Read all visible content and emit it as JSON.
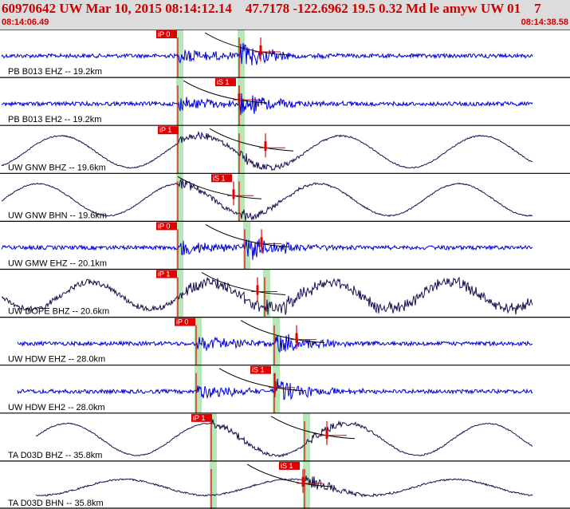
{
  "header": {
    "title": "60970642 UW Mar 10, 2015 08:14:12.14    47.7178 -122.6962 19.5 0.32 Md le amyw UW 01    7",
    "time_start": "08:14:06.49",
    "time_end": "08:14:38.58"
  },
  "colors": {
    "header_bg": "#dcdcdc",
    "header_text": "#cc0000",
    "trace_blue": "#0000d8",
    "trace_navy": "#1a1050",
    "pick_red": "#e00000",
    "band_green": "#b8e6b8"
  },
  "channels": [
    {
      "label": "PB B013 EHZ -- 19.2km",
      "pick": "iP 0",
      "trace": "blue",
      "kind": "hf"
    },
    {
      "label": "PB B013 EH2 -- 19.2km",
      "pick": "iS 1",
      "trace": "blue",
      "kind": "hf"
    },
    {
      "label": "UW GNW BHZ -- 19.6km",
      "pick": "iP 1",
      "trace": "navy",
      "kind": "lf"
    },
    {
      "label": "UW GNW BHN -- 19.6km",
      "pick": "iS 1",
      "trace": "navy",
      "kind": "lf"
    },
    {
      "label": "UW GMW EHZ -- 20.1km",
      "pick": "iP 0",
      "trace": "blue",
      "kind": "hf"
    },
    {
      "label": "UW DOPE BHZ -- 20.6km",
      "pick": "iP 1",
      "trace": "navy",
      "kind": "mix"
    },
    {
      "label": "UW HDW EHZ -- 28.0km",
      "pick": "iP 0",
      "trace": "blue",
      "kind": "hf"
    },
    {
      "label": "UW HDW EH2 -- 28.0km",
      "pick": "iS 1",
      "trace": "blue",
      "kind": "hf"
    },
    {
      "label": "TA D03D BHZ -- 35.8km",
      "pick": "iP 1",
      "trace": "navy",
      "kind": "lf"
    },
    {
      "label": "TA D03D BHN -- 35.8km",
      "pick": "iS 1",
      "trace": "navy",
      "kind": "lf2"
    }
  ]
}
